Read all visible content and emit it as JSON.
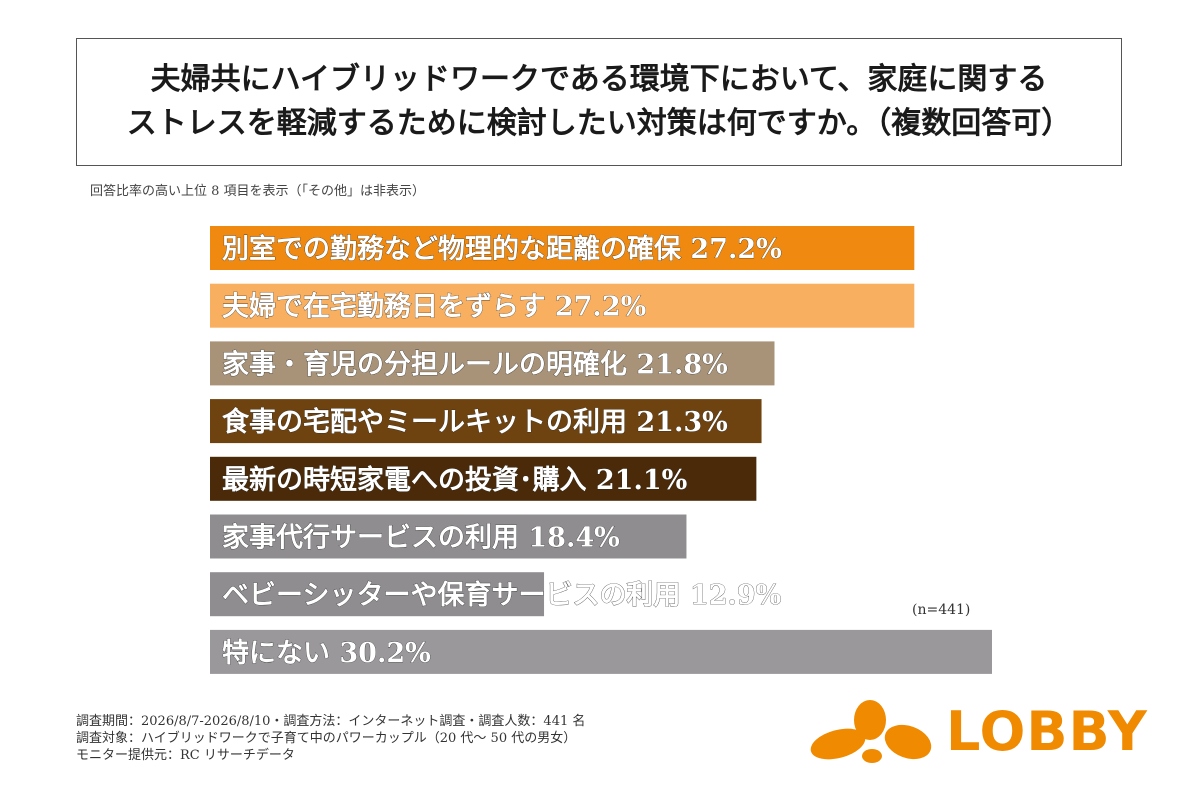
{
  "header": {
    "title_line1": "夫婦共にハイブリッドワークである環境下において、家庭に関する",
    "title_line2": "ストレスを軽減するために検討したい対策は何ですか。（複数回答可）",
    "subnote": "回答比率の高い上位 8 項目を表示（「その他」は非表示）"
  },
  "chart_data": {
    "type": "bar",
    "orientation": "horizontal",
    "unit": "%",
    "categories": [
      "別室での勤務など物理的な距離の確保",
      "夫婦で在宅勤務日をずらす",
      "家事・育児の分担ルールの明確化",
      "食事の宅配やミールキットの利用",
      "最新の時短家電への投資･購入",
      "家事代行サービスの利用",
      "ベビーシッターや保育サービスの利用",
      "特にない"
    ],
    "values": [
      27.2,
      27.2,
      21.8,
      21.3,
      21.1,
      18.4,
      12.9,
      30.2
    ],
    "value_labels": [
      "27.2%",
      "27.2%",
      "21.8%",
      "21.3%",
      "21.1%",
      "18.4%",
      "12.9%",
      "30.2%"
    ],
    "colors": [
      "#f0890f",
      "#f8b060",
      "#a89378",
      "#6e4310",
      "#4a2a08",
      "#8f8d90",
      "#8f8d90",
      "#9a989b"
    ],
    "xlim": [
      0,
      30.2
    ],
    "sample_note": "(n=441)"
  },
  "footer": {
    "line1": "調査期間：2026/8/7-2026/8/10・調査方法：インターネット調査・調査人数：441 名",
    "line2": "調査対象：ハイブリッドワークで子育て中のパワーカップル（20 代〜 50 代の男女）",
    "line3": "モニター提供元：RC リサーチデータ"
  },
  "logo": {
    "text": "LOBBY",
    "color": "#f08a00"
  }
}
